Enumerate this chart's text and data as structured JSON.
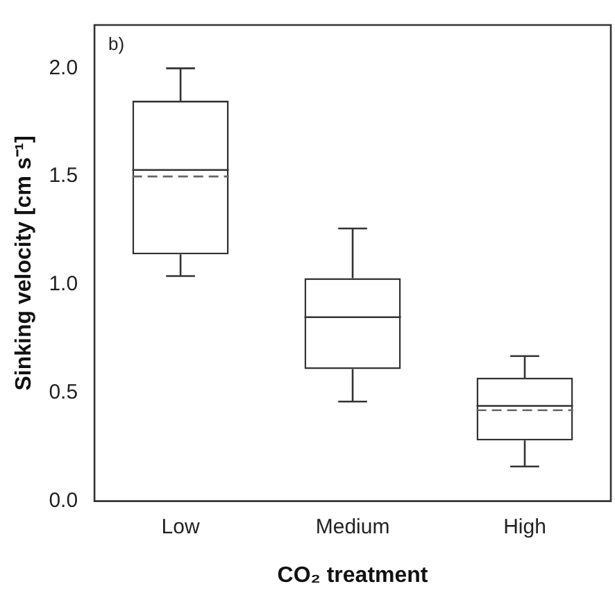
{
  "chart_data": {
    "type": "box",
    "xlabel": "CO₂ treatment",
    "ylabel": "Sinking velocity [cm s⁻¹]",
    "annotations": [
      "b)"
    ],
    "categories": [
      "Low",
      "Medium",
      "High"
    ],
    "color": "#333333",
    "boxes": [
      {
        "low": 1.04,
        "q1": 1.14,
        "median": 1.53,
        "q3": 1.85,
        "high": 2.0,
        "mean": 1.5
      },
      {
        "low": 0.46,
        "q1": 0.61,
        "median": 0.85,
        "q3": 1.03,
        "high": 1.26
      },
      {
        "low": 0.16,
        "q1": 0.28,
        "median": 0.44,
        "q3": 0.57,
        "high": 0.67,
        "mean": 0.42
      }
    ],
    "ylim": [
      0,
      2.2
    ],
    "yticks": [
      {
        "value": 0,
        "label": "0.0"
      },
      {
        "value": 0.5,
        "label": "0.5"
      },
      {
        "value": 1,
        "label": "1.0"
      },
      {
        "value": 1.5,
        "label": "1.5"
      },
      {
        "value": 2,
        "label": "2.0"
      }
    ]
  }
}
